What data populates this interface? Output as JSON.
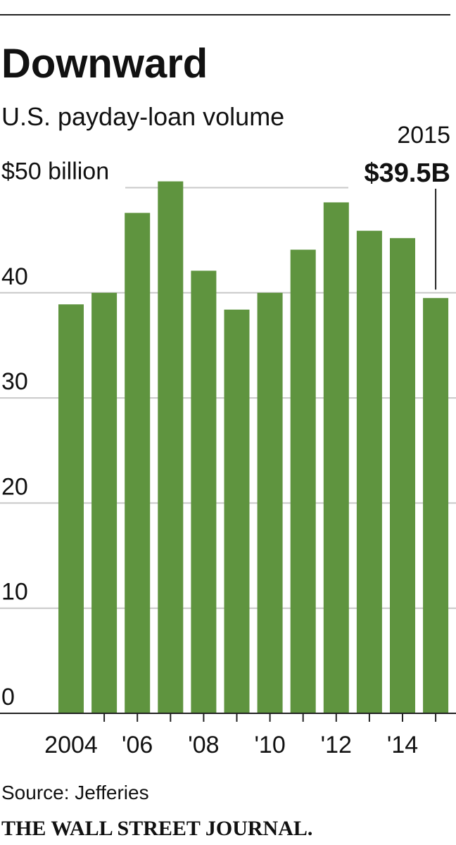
{
  "chart_data": {
    "type": "bar",
    "title": "Downward",
    "subtitle": "U.S. payday-loan volume",
    "categories": [
      "2004",
      null,
      "'06",
      null,
      "'08",
      null,
      "'10",
      null,
      "'12",
      null,
      "'14",
      null
    ],
    "values": [
      38.9,
      40,
      47.6,
      50.6,
      42.1,
      38.4,
      40,
      44.1,
      48.6,
      45.9,
      45.2,
      39.5
    ],
    "color": "#5f943f",
    "ylim": [
      0,
      50.6
    ],
    "yticks": [
      0,
      10,
      20,
      30,
      40,
      {
        "value": 50,
        "label": "$50 billion"
      }
    ],
    "grid": true,
    "annotation": {
      "title": "2015",
      "text": "$39.5B"
    },
    "source": "Source: Jefferies",
    "publisher": "THE WALL STREET JOURNAL."
  }
}
